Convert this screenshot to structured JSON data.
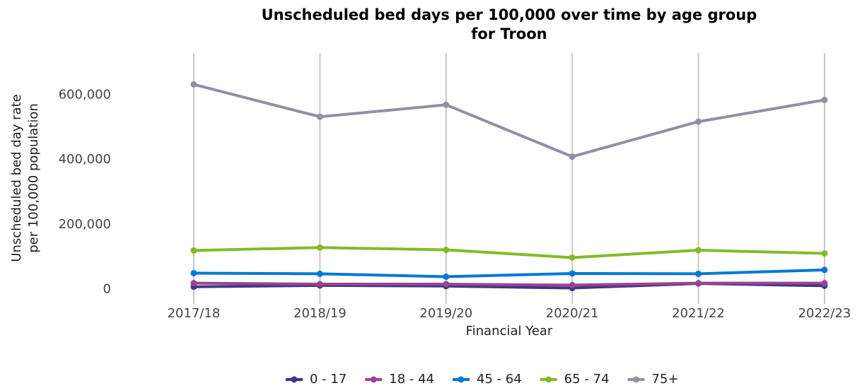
{
  "chart_data": {
    "type": "line",
    "title": [
      "Unscheduled bed days per 100,000 over time by age group",
      "for Troon"
    ],
    "x_label": "Financial Year",
    "y_label": [
      "Unscheduled bed day rate",
      "per 100,000 population"
    ],
    "categories": [
      "2017/18",
      "2018/19",
      "2019/20",
      "2020/21",
      "2021/22",
      "2022/23"
    ],
    "series": [
      {
        "name": "0 - 17",
        "color": "#3f3685",
        "values": [
          8000,
          12000,
          10000,
          4000,
          18000,
          11000
        ]
      },
      {
        "name": "18 - 44",
        "color": "#9b4393",
        "values": [
          19000,
          16000,
          16000,
          13000,
          19000,
          19000
        ]
      },
      {
        "name": "45 - 64",
        "color": "#0078d4",
        "values": [
          50000,
          48000,
          39000,
          49000,
          48000,
          60000
        ]
      },
      {
        "name": "65 - 74",
        "color": "#83bb26",
        "values": [
          120000,
          129000,
          122000,
          98000,
          121000,
          111000
        ]
      },
      {
        "name": "75+",
        "color": "#948da3",
        "values": [
          633000,
          533000,
          570000,
          410000,
          518000,
          585000
        ]
      }
    ],
    "ylim": [
      -45000,
      730000
    ],
    "yticks": [
      0,
      {
        "value": 200000,
        "label": "200,000"
      },
      {
        "value": 400000,
        "label": "400,000"
      },
      {
        "value": 600000,
        "label": "600,000"
      }
    ],
    "grid": "x",
    "legend": "bottom"
  }
}
